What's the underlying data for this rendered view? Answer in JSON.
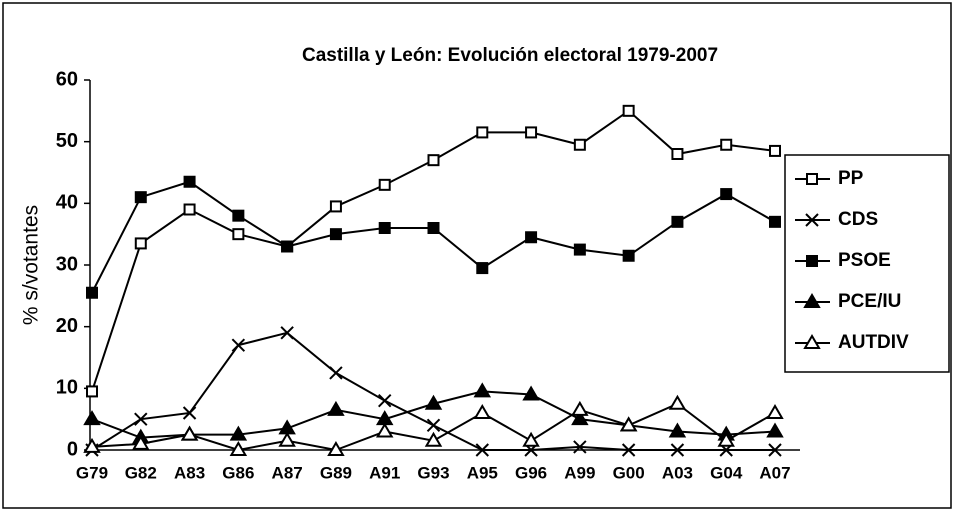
{
  "chart_data": {
    "type": "line",
    "title": "Castilla y León: Evolución electoral 1979-2007",
    "ylabel": "% s/votantes",
    "categories": [
      "G79",
      "G82",
      "A83",
      "G86",
      "A87",
      "G89",
      "A91",
      "G93",
      "A95",
      "G96",
      "A99",
      "G00",
      "A03",
      "G04",
      "A07"
    ],
    "ylim": [
      0,
      60
    ],
    "yticks": [
      0,
      10,
      20,
      30,
      40,
      50,
      60
    ],
    "legend": "right",
    "series": [
      {
        "name": "PP",
        "color": "#000000",
        "marker": "square-open",
        "values": [
          9.5,
          33.5,
          39,
          35,
          33,
          39.5,
          43,
          47,
          51.5,
          51.5,
          49.5,
          55,
          48,
          49.5,
          48.5
        ]
      },
      {
        "name": "CDS",
        "color": "#000000",
        "marker": "cross",
        "values": [
          0,
          5,
          6,
          17,
          19,
          12.5,
          8,
          4,
          0,
          0,
          0.5,
          0,
          0,
          0,
          0
        ]
      },
      {
        "name": "PSOE",
        "color": "#000000",
        "marker": "square",
        "values": [
          25.5,
          41,
          43.5,
          38,
          33,
          35,
          36,
          36,
          29.5,
          34.5,
          32.5,
          31.5,
          37,
          41.5,
          37
        ]
      },
      {
        "name": "PCE/IU",
        "color": "#000000",
        "marker": "triangle",
        "values": [
          5,
          2,
          2.5,
          2.5,
          3.5,
          6.5,
          5,
          7.5,
          9.5,
          9,
          5,
          4,
          3,
          2.5,
          3
        ]
      },
      {
        "name": "AUTDIV",
        "color": "#000000",
        "marker": "triangle-open",
        "values": [
          0.5,
          1,
          2.5,
          0,
          1.5,
          0,
          3,
          1.5,
          6,
          1.5,
          6.5,
          4,
          7.5,
          1.5,
          6
        ]
      }
    ]
  }
}
